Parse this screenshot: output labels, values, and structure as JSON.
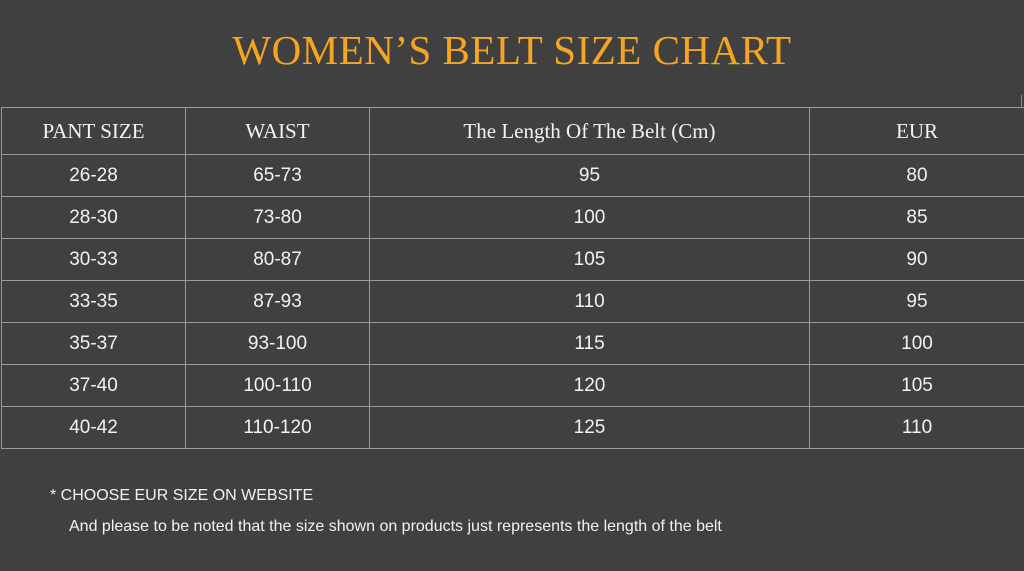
{
  "title": "WOMEN’S BELT SIZE CHART",
  "title_color": "#f5a51f",
  "table": {
    "headers": [
      "PANT SIZE",
      "WAIST",
      "The Length Of The Belt (Cm)",
      "EUR"
    ],
    "rows": [
      [
        "26-28",
        "65-73",
        "95",
        "80"
      ],
      [
        "28-30",
        "73-80",
        "100",
        "85"
      ],
      [
        "30-33",
        "80-87",
        "105",
        "90"
      ],
      [
        "33-35",
        "87-93",
        "110",
        "95"
      ],
      [
        "35-37",
        "93-100",
        "115",
        "100"
      ],
      [
        "37-40",
        "100-110",
        "120",
        "105"
      ],
      [
        "40-42",
        "110-120",
        "125",
        "110"
      ]
    ]
  },
  "notes": {
    "line1": "*  CHOOSE EUR SIZE ON WEBSITE",
    "line2": "And please to be noted that the size shown on products just represents the length of the belt"
  }
}
